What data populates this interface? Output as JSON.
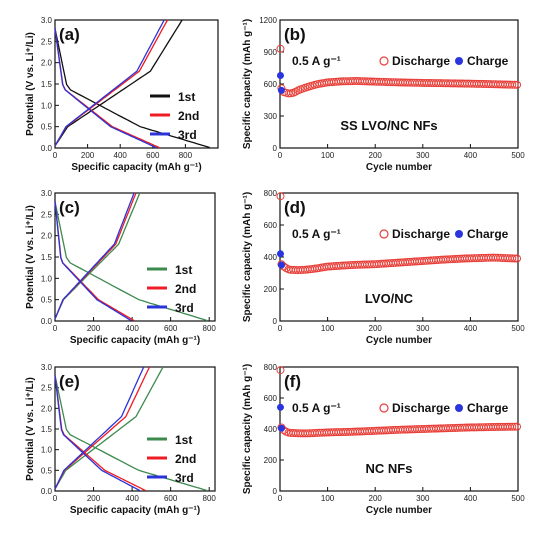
{
  "colors": {
    "black": "#111111",
    "green": "#3d8a4e",
    "red": "#ee1c24",
    "blue": "#2b34d8",
    "discharge_marker": "#e8413b",
    "charge_marker": "#2a35dd"
  },
  "chart_data": [
    {
      "id": "a",
      "type": "line",
      "panel_label": "(a)",
      "xlabel": "Specific capacity (mAh g⁻¹)",
      "ylabel": "Potential (V vs. Li⁺/Li)",
      "xlim": [
        0,
        1000
      ],
      "ylim": [
        0,
        3.0
      ],
      "xticks": [
        0,
        200,
        400,
        600,
        800
      ],
      "yticks": [
        0.0,
        0.5,
        1.0,
        1.5,
        2.0,
        2.5,
        3.0
      ],
      "legend": [
        "1st",
        "2nd",
        "3rd"
      ],
      "series": [
        {
          "name": "1st",
          "color_key": "black",
          "discharge_capacity": 950,
          "charge_capacity": 780
        },
        {
          "name": "2nd",
          "color_key": "red",
          "discharge_capacity": 640,
          "charge_capacity": 690
        },
        {
          "name": "3rd",
          "color_key": "blue",
          "discharge_capacity": 620,
          "charge_capacity": 670
        }
      ]
    },
    {
      "id": "b",
      "type": "scatter",
      "panel_label": "(b)",
      "xlabel": "Cycle number",
      "ylabel": "Specific capacity (mAh g⁻¹)",
      "xlim": [
        0,
        500
      ],
      "ylim": [
        0,
        1200
      ],
      "xticks": [
        0,
        100,
        200,
        300,
        400,
        500
      ],
      "yticks": [
        0,
        300,
        600,
        900,
        1200
      ],
      "rate": "0.5 A g⁻¹",
      "legend": [
        "Discharge",
        "Charge"
      ],
      "annotation": "SS LVO/NC NFs",
      "series": [
        {
          "name": "Discharge",
          "points": [
            [
              1,
              930
            ],
            [
              3,
              560
            ],
            [
              5,
              530
            ],
            [
              10,
              520
            ],
            [
              20,
              510
            ],
            [
              30,
              520
            ],
            [
              40,
              545
            ],
            [
              60,
              575
            ],
            [
              80,
              600
            ],
            [
              100,
              615
            ],
            [
              130,
              625
            ],
            [
              160,
              628
            ],
            [
              200,
              622
            ],
            [
              250,
              615
            ],
            [
              300,
              610
            ],
            [
              350,
              607
            ],
            [
              400,
              603
            ],
            [
              450,
              598
            ],
            [
              500,
              592
            ]
          ]
        },
        {
          "name": "Charge",
          "points": [
            [
              1,
              680
            ],
            [
              3,
              540
            ]
          ]
        }
      ]
    },
    {
      "id": "c",
      "type": "line",
      "panel_label": "(c)",
      "xlabel": "Specific capacity (mAh g⁻¹)",
      "ylabel": "Potential (V vs. Li⁺/Li)",
      "xlim": [
        0,
        830
      ],
      "ylim": [
        0,
        3.0
      ],
      "xticks": [
        0,
        200,
        400,
        600,
        800
      ],
      "yticks": [
        0.0,
        0.5,
        1.0,
        1.5,
        2.0,
        2.5,
        3.0
      ],
      "legend": [
        "1st",
        "2nd",
        "3rd"
      ],
      "series": [
        {
          "name": "1st",
          "color_key": "green",
          "discharge_capacity": 790,
          "charge_capacity": 440
        },
        {
          "name": "2nd",
          "color_key": "red",
          "discharge_capacity": 410,
          "charge_capacity": 420
        },
        {
          "name": "3rd",
          "color_key": "blue",
          "discharge_capacity": 395,
          "charge_capacity": 410
        }
      ]
    },
    {
      "id": "d",
      "type": "scatter",
      "panel_label": "(d)",
      "xlabel": "Cycle number",
      "ylabel": "Specific capacity (mAh g⁻¹)",
      "xlim": [
        0,
        500
      ],
      "ylim": [
        0,
        800
      ],
      "xticks": [
        0,
        100,
        200,
        300,
        400,
        500
      ],
      "yticks": [
        0,
        200,
        400,
        600,
        800
      ],
      "rate": "0.5 A g⁻¹",
      "legend": [
        "Discharge",
        "Charge"
      ],
      "annotation": "LVO/NC",
      "series": [
        {
          "name": "Discharge",
          "points": [
            [
              1,
              780
            ],
            [
              3,
              355
            ],
            [
              10,
              335
            ],
            [
              20,
              320
            ],
            [
              40,
              318
            ],
            [
              60,
              322
            ],
            [
              80,
              330
            ],
            [
              100,
              340
            ],
            [
              150,
              350
            ],
            [
              200,
              355
            ],
            [
              250,
              365
            ],
            [
              300,
              375
            ],
            [
              350,
              385
            ],
            [
              400,
              392
            ],
            [
              450,
              396
            ],
            [
              500,
              390
            ]
          ]
        },
        {
          "name": "Charge",
          "points": [
            [
              1,
              420
            ],
            [
              3,
              350
            ]
          ]
        }
      ]
    },
    {
      "id": "e",
      "type": "line",
      "panel_label": "(e)",
      "xlabel": "Specific capacity (mAh g⁻¹)",
      "ylabel": "Potential (V vs. Li⁺/Li)",
      "xlim": [
        0,
        830
      ],
      "ylim": [
        0,
        3.0
      ],
      "xticks": [
        0,
        200,
        400,
        600,
        800
      ],
      "yticks": [
        0.0,
        0.5,
        1.0,
        1.5,
        2.0,
        2.5,
        3.0
      ],
      "legend": [
        "1st",
        "2nd",
        "3rd"
      ],
      "series": [
        {
          "name": "1st",
          "color_key": "green",
          "discharge_capacity": 790,
          "charge_capacity": 560
        },
        {
          "name": "2nd",
          "color_key": "red",
          "discharge_capacity": 470,
          "charge_capacity": 490
        },
        {
          "name": "3rd",
          "color_key": "blue",
          "discharge_capacity": 440,
          "charge_capacity": 460
        }
      ]
    },
    {
      "id": "f",
      "type": "scatter",
      "panel_label": "(f)",
      "xlabel": "Cycle number",
      "ylabel": "Specific capacity (mAh g⁻¹)",
      "xlim": [
        0,
        500
      ],
      "ylim": [
        0,
        800
      ],
      "xticks": [
        0,
        100,
        200,
        300,
        400,
        500
      ],
      "yticks": [
        0,
        200,
        400,
        600,
        800
      ],
      "rate": "0.5 A g⁻¹",
      "legend": [
        "Discharge",
        "Charge"
      ],
      "annotation": "NC NFs",
      "series": [
        {
          "name": "Discharge",
          "points": [
            [
              1,
              780
            ],
            [
              3,
              410
            ],
            [
              10,
              385
            ],
            [
              20,
              375
            ],
            [
              40,
              372
            ],
            [
              60,
              372
            ],
            [
              80,
              375
            ],
            [
              100,
              378
            ],
            [
              150,
              382
            ],
            [
              200,
              388
            ],
            [
              250,
              395
            ],
            [
              300,
              400
            ],
            [
              350,
              405
            ],
            [
              400,
              410
            ],
            [
              450,
              413
            ],
            [
              500,
              415
            ]
          ]
        },
        {
          "name": "Charge",
          "points": [
            [
              1,
              540
            ],
            [
              3,
              405
            ]
          ]
        }
      ]
    }
  ]
}
